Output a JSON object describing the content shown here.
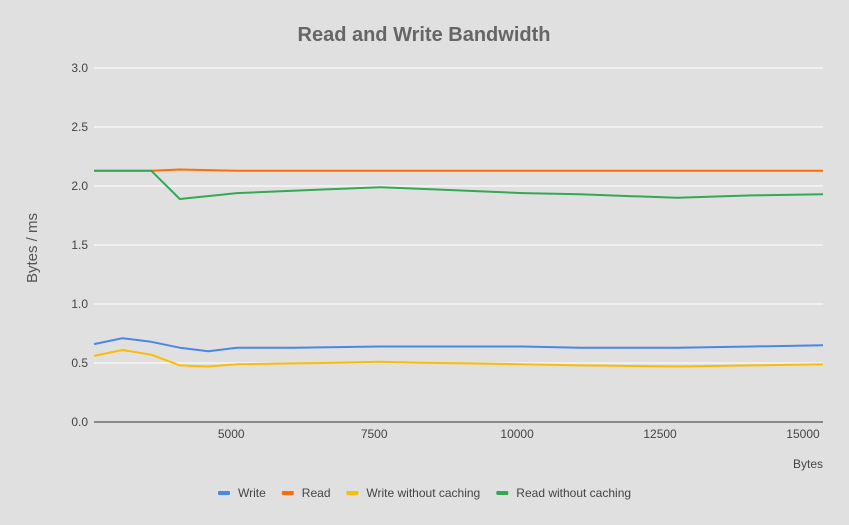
{
  "chart_data": {
    "type": "line",
    "title": "Read and Write Bandwidth",
    "xlabel": "Bytes",
    "ylabel": "Bytes / ms",
    "xlim": [
      2600,
      15350
    ],
    "ylim": [
      0,
      3.0
    ],
    "x_ticks": [
      5000,
      7500,
      10000,
      12500,
      15000
    ],
    "y_ticks": [
      0.0,
      0.5,
      1.0,
      1.5,
      2.0,
      2.5,
      3.0
    ],
    "y_tick_labels": [
      "0.0",
      "0.5",
      "1.0",
      "1.5",
      "2.0",
      "2.5",
      "3.0"
    ],
    "grid": true,
    "legend_position": "bottom",
    "series": [
      {
        "name": "Write",
        "color": "#4a86e8",
        "points": [
          [
            2600,
            0.66
          ],
          [
            3100,
            0.71
          ],
          [
            3600,
            0.68
          ],
          [
            4100,
            0.63
          ],
          [
            4600,
            0.6
          ],
          [
            5100,
            0.63
          ],
          [
            6100,
            0.63
          ],
          [
            7600,
            0.64
          ],
          [
            8600,
            0.64
          ],
          [
            10100,
            0.64
          ],
          [
            11100,
            0.63
          ],
          [
            12800,
            0.63
          ],
          [
            14100,
            0.64
          ],
          [
            15350,
            0.65
          ]
        ]
      },
      {
        "name": "Read",
        "color": "#ff6d01",
        "points": [
          [
            2600,
            2.13
          ],
          [
            3600,
            2.13
          ],
          [
            4100,
            2.14
          ],
          [
            5100,
            2.13
          ],
          [
            7600,
            2.13
          ],
          [
            10100,
            2.13
          ],
          [
            12500,
            2.13
          ],
          [
            15350,
            2.13
          ]
        ]
      },
      {
        "name": "Write without caching",
        "color": "#fbbc04",
        "points": [
          [
            2600,
            0.56
          ],
          [
            3100,
            0.61
          ],
          [
            3600,
            0.57
          ],
          [
            4100,
            0.48
          ],
          [
            4600,
            0.47
          ],
          [
            5100,
            0.49
          ],
          [
            6600,
            0.5
          ],
          [
            7600,
            0.51
          ],
          [
            8600,
            0.5
          ],
          [
            10100,
            0.49
          ],
          [
            11100,
            0.48
          ],
          [
            12800,
            0.47
          ],
          [
            14100,
            0.48
          ],
          [
            15350,
            0.49
          ]
        ]
      },
      {
        "name": "Read without caching",
        "color": "#34a853",
        "points": [
          [
            2600,
            2.13
          ],
          [
            3600,
            2.13
          ],
          [
            4100,
            1.89
          ],
          [
            5100,
            1.94
          ],
          [
            6600,
            1.97
          ],
          [
            7600,
            1.99
          ],
          [
            8600,
            1.97
          ],
          [
            10100,
            1.94
          ],
          [
            11100,
            1.93
          ],
          [
            12800,
            1.9
          ],
          [
            14100,
            1.92
          ],
          [
            15350,
            1.93
          ]
        ]
      }
    ]
  }
}
